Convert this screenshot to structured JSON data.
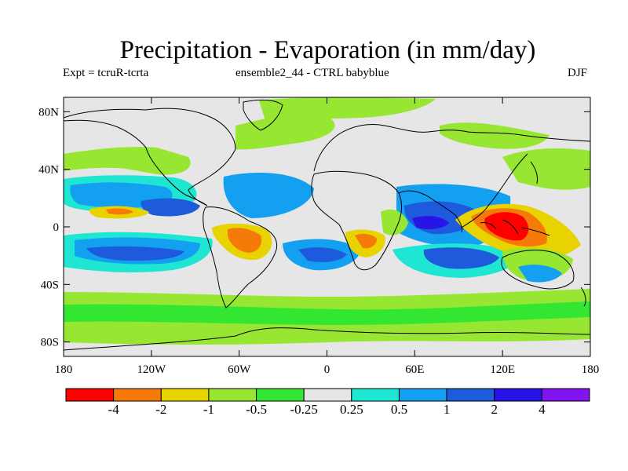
{
  "title": "Precipitation - Evaporation (in mm/day)",
  "subtitle_left": "Expt = tcruR-tcrta",
  "subtitle_center": "ensemble2_44 - CTRL babyblue",
  "subtitle_right": "DJF",
  "lat_ticks": [
    {
      "value": 80,
      "label": "80N"
    },
    {
      "value": 40,
      "label": "40N"
    },
    {
      "value": 0,
      "label": "0"
    },
    {
      "value": -40,
      "label": "40S"
    },
    {
      "value": -80,
      "label": "80S"
    }
  ],
  "lon_ticks": [
    {
      "value": -180,
      "label": "180"
    },
    {
      "value": -120,
      "label": "120W"
    },
    {
      "value": -60,
      "label": "60W"
    },
    {
      "value": 0,
      "label": "0"
    },
    {
      "value": 60,
      "label": "60E"
    },
    {
      "value": 120,
      "label": "120E"
    },
    {
      "value": 180,
      "label": "180"
    }
  ],
  "colorbar": {
    "colors": [
      "#ff0000",
      "#f57a0a",
      "#e8d200",
      "#96e632",
      "#32e632",
      "#e6e6e6",
      "#1ee6d2",
      "#14a0f0",
      "#1e5adc",
      "#2814e6",
      "#8214f0"
    ],
    "labels": [
      "-4",
      "-2",
      "-1",
      "-0.5",
      "-0.25",
      "0.25",
      "0.5",
      "1",
      "2",
      "4"
    ]
  },
  "colors": {
    "background": "#e6e6e6",
    "coast": "#000000"
  }
}
